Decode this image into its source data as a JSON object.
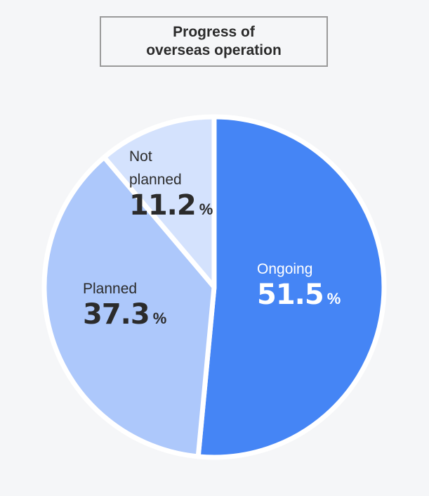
{
  "title_lines": [
    "Progress of",
    "overseas operation"
  ],
  "colors": {
    "background": "#f5f6f8",
    "ongoing": "#4585f5",
    "planned": "#adc8fb",
    "not_planned": "#d4e2fd",
    "separator": "#ffffff",
    "text_dark": "#2b2b2b"
  },
  "chart_data": {
    "type": "pie",
    "title": "Progress of overseas operation",
    "unit": "%",
    "slices": [
      {
        "name_lines": [
          "Ongoing"
        ],
        "value": 51.5,
        "value_label": "51.5",
        "color": "#4585f5"
      },
      {
        "name_lines": [
          "Planned"
        ],
        "value": 37.3,
        "value_label": "37.3",
        "color": "#adc8fb"
      },
      {
        "name_lines": [
          "Not",
          "planned"
        ],
        "value": 11.2,
        "value_label": "11.2",
        "color": "#d4e2fd"
      }
    ]
  }
}
